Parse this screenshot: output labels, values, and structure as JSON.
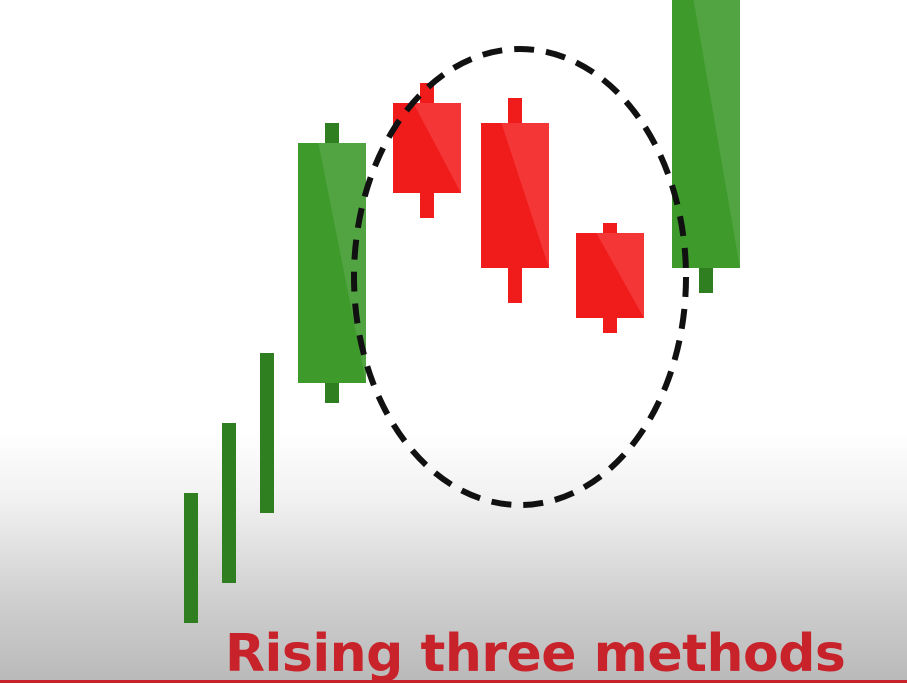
{
  "title": "Rising three methods",
  "colors": {
    "bullish": "#3d9a2b",
    "bullish_light": "#56a647",
    "bullish_dark": "#2f7f20",
    "bearish": "#f01c1c",
    "bearish_light": "#f63b3b",
    "highlight_circle": "#111111",
    "title": "#c8232a"
  },
  "pattern": {
    "prior_trend": "up",
    "candles": [
      {
        "role": "trend-tick",
        "direction": "bullish",
        "open": 12,
        "close": 12,
        "high": 38,
        "low": 12
      },
      {
        "role": "trend-tick",
        "direction": "bullish",
        "open": 20,
        "close": 20,
        "high": 52,
        "low": 20
      },
      {
        "role": "trend-tick",
        "direction": "bullish",
        "open": 34,
        "close": 34,
        "high": 66,
        "low": 34
      },
      {
        "role": "first",
        "direction": "bullish",
        "open": 60,
        "close": 108,
        "high": 112,
        "low": 56
      },
      {
        "role": "pullback",
        "direction": "bearish",
        "open": 116,
        "close": 98,
        "high": 120,
        "low": 93
      },
      {
        "role": "pullback",
        "direction": "bearish",
        "open": 112,
        "close": 83,
        "high": 117,
        "low": 76
      },
      {
        "role": "pullback",
        "direction": "bearish",
        "open": 90,
        "close": 73,
        "high": 92,
        "low": 70
      },
      {
        "role": "confirmation",
        "direction": "bullish",
        "open": 83,
        "close": 138,
        "high": 144,
        "low": 78
      }
    ],
    "highlighted_candles": [
      "pullback"
    ]
  }
}
